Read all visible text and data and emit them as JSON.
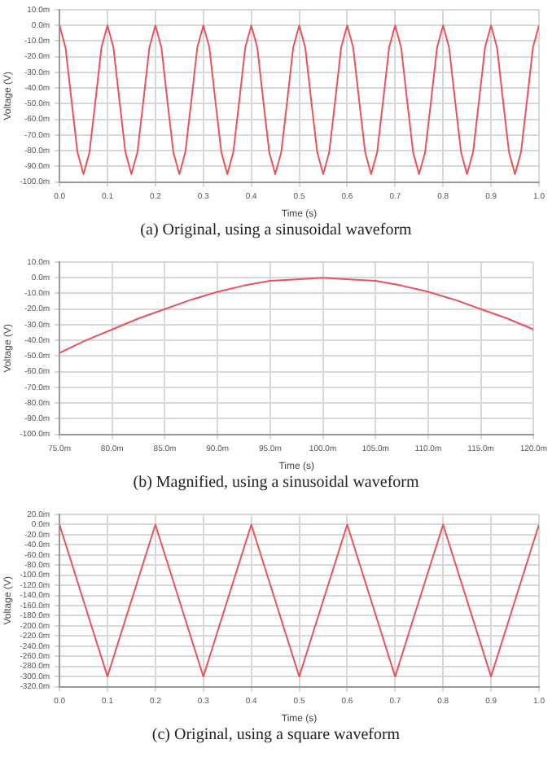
{
  "chart_data": [
    {
      "type": "line",
      "xlabel": "Time (s)",
      "ylabel": "Voltage (V)",
      "annotations": [
        "(a) Original, using a sinusoidal waveform"
      ],
      "grid": true,
      "legend": false,
      "marker": "none",
      "line_style": "solid",
      "x": [
        0,
        0.0125,
        0.025,
        0.0375,
        0.05,
        0.0625,
        0.075,
        0.0875,
        0.1,
        0.1125,
        0.125,
        0.1375,
        0.15,
        0.1625,
        0.175,
        0.1875,
        0.2,
        0.2125,
        0.225,
        0.2375,
        0.25,
        0.2625,
        0.275,
        0.2875,
        0.3,
        0.3125,
        0.325,
        0.3375,
        0.35,
        0.3625,
        0.375,
        0.3875,
        0.4,
        0.4125,
        0.425,
        0.4375,
        0.45,
        0.4625,
        0.475,
        0.4875,
        0.5,
        0.5125,
        0.525,
        0.5375,
        0.55,
        0.5625,
        0.575,
        0.5875,
        0.6,
        0.6125,
        0.625,
        0.6375,
        0.65,
        0.6625,
        0.675,
        0.6875,
        0.7,
        0.7125,
        0.725,
        0.7375,
        0.75,
        0.7625,
        0.775,
        0.7875,
        0.8,
        0.8125,
        0.825,
        0.8375,
        0.85,
        0.8625,
        0.875,
        0.8875,
        0.9,
        0.9125,
        0.925,
        0.9375,
        0.95,
        0.9625,
        0.975,
        0.9875,
        1
      ],
      "series": [
        {
          "color": "#e8545a",
          "values": [
            0,
            -14,
            -48,
            -81,
            -95,
            -81,
            -48,
            -14,
            0,
            -14,
            -48,
            -81,
            -95,
            -81,
            -48,
            -14,
            0,
            -14,
            -48,
            -81,
            -95,
            -81,
            -48,
            -14,
            0,
            -14,
            -48,
            -81,
            -95,
            -81,
            -48,
            -14,
            0,
            -14,
            -48,
            -81,
            -95,
            -81,
            -48,
            -14,
            0,
            -14,
            -48,
            -81,
            -95,
            -81,
            -48,
            -14,
            0,
            -14,
            -48,
            -81,
            -95,
            -81,
            -48,
            -14,
            0,
            -14,
            -48,
            -81,
            -95,
            -81,
            -48,
            -14,
            0,
            -14,
            -48,
            -81,
            -95,
            -81,
            -48,
            -14,
            0,
            -14,
            -48,
            -81,
            -95,
            -81,
            -48,
            -14,
            0
          ]
        }
      ],
      "xlim": [
        0,
        1
      ],
      "xticks": [
        {
          "value": 0,
          "label": "0.0"
        },
        0.1,
        0.2,
        0.3,
        0.4,
        0.5,
        0.6,
        0.7,
        0.8,
        0.9,
        {
          "value": 1,
          "label": "1.0"
        }
      ],
      "ylim": [
        -100,
        10
      ],
      "yticks": [
        {
          "value": 10,
          "label": "10.0m"
        },
        {
          "value": 0,
          "label": "0.0m"
        },
        {
          "value": -10,
          "label": "-10.0m"
        },
        {
          "value": -20,
          "label": "-20.0m"
        },
        {
          "value": -30,
          "label": "-30.0m"
        },
        {
          "value": -40,
          "label": "-40.0m"
        },
        {
          "value": -50,
          "label": "-50.0m"
        },
        {
          "value": -60,
          "label": "-60.0m"
        },
        {
          "value": -70,
          "label": "-70.0m"
        },
        {
          "value": -80,
          "label": "-80.0m"
        },
        {
          "value": -90,
          "label": "-90.0m"
        },
        {
          "value": -100,
          "label": "-100.0m"
        }
      ]
    },
    {
      "type": "line",
      "xlabel": "Time (s)",
      "ylabel": "Voltage (V)",
      "annotations": [
        "(b) Magnified, using a sinusoidal waveform"
      ],
      "grid": true,
      "legend": false,
      "marker": "none",
      "line_style": "solid",
      "x": [
        75,
        77.5,
        80,
        82.5,
        85,
        87.5,
        90,
        92.5,
        95,
        97.5,
        100,
        102.5,
        105,
        107.5,
        110,
        112.5,
        115,
        117.5,
        120
      ],
      "series": [
        {
          "color": "#e8545a",
          "values": [
            -48,
            -40,
            -33,
            -26,
            -20,
            -14,
            -9,
            -5,
            -2,
            -1,
            0,
            -1,
            -2,
            -5,
            -9,
            -14,
            -20,
            -26,
            -33
          ]
        }
      ],
      "xlim": [
        75,
        120
      ],
      "xticks": [
        {
          "value": 75,
          "label": "75.0m"
        },
        {
          "value": 80,
          "label": "80.0m"
        },
        {
          "value": 85,
          "label": "85.0m"
        },
        {
          "value": 90,
          "label": "90.0m"
        },
        {
          "value": 95,
          "label": "95.0m"
        },
        {
          "value": 100,
          "label": "100.0m"
        },
        {
          "value": 105,
          "label": "105.0m"
        },
        {
          "value": 110,
          "label": "110.0m"
        },
        {
          "value": 115,
          "label": "115.0m"
        },
        {
          "value": 120,
          "label": "120.0m"
        }
      ],
      "ylim": [
        -100,
        10
      ],
      "yticks": [
        {
          "value": 10,
          "label": "10.0m"
        },
        {
          "value": 0,
          "label": "0.0m"
        },
        {
          "value": -10,
          "label": "-10.0m"
        },
        {
          "value": -20,
          "label": "-20.0m"
        },
        {
          "value": -30,
          "label": "-30.0m"
        },
        {
          "value": -40,
          "label": "-40.0m"
        },
        {
          "value": -50,
          "label": "-50.0m"
        },
        {
          "value": -60,
          "label": "-60.0m"
        },
        {
          "value": -70,
          "label": "-70.0m"
        },
        {
          "value": -80,
          "label": "-80.0m"
        },
        {
          "value": -90,
          "label": "-90.0m"
        },
        {
          "value": -100,
          "label": "-100.0m"
        }
      ]
    },
    {
      "type": "line",
      "xlabel": "Time (s)",
      "ylabel": "Voltage (V)",
      "annotations": [
        "(c) Original, using a square waveform"
      ],
      "grid": true,
      "legend": false,
      "marker": "none",
      "line_style": "solid",
      "x": [
        0,
        0.1,
        0.2,
        0.3,
        0.4,
        0.5,
        0.6,
        0.7,
        0.8,
        0.9,
        1
      ],
      "series": [
        {
          "color": "#e8545a",
          "values": [
            0,
            -300,
            0,
            -300,
            0,
            -300,
            0,
            -300,
            0,
            -300,
            0
          ]
        }
      ],
      "xlim": [
        0,
        1
      ],
      "xticks": [
        {
          "value": 0,
          "label": "0.0"
        },
        0.1,
        0.2,
        0.3,
        0.4,
        0.5,
        0.6,
        0.7,
        0.8,
        0.9,
        {
          "value": 1,
          "label": "1.0"
        }
      ],
      "ylim": [
        -320,
        20
      ],
      "yticks": [
        {
          "value": 20,
          "label": "20.0m"
        },
        {
          "value": 0,
          "label": "0.0m"
        },
        {
          "value": -20,
          "label": "-20.0m"
        },
        {
          "value": -40,
          "label": "-40.0m"
        },
        {
          "value": -60,
          "label": "-60.0m"
        },
        {
          "value": -80,
          "label": "-80.0m"
        },
        {
          "value": -100,
          "label": "-100.0m"
        },
        {
          "value": -120,
          "label": "-120.0m"
        },
        {
          "value": -140,
          "label": "-140.0m"
        },
        {
          "value": -160,
          "label": "-160.0m"
        },
        {
          "value": -180,
          "label": "-180.0m"
        },
        {
          "value": -200,
          "label": "-200.0m"
        },
        {
          "value": -220,
          "label": "-220.0m"
        },
        {
          "value": -240,
          "label": "-240.0m"
        },
        {
          "value": -260,
          "label": "-260.0m"
        },
        {
          "value": -280,
          "label": "-280.0m"
        },
        {
          "value": -300,
          "label": "-300.0m"
        },
        {
          "value": -320,
          "label": "-320.0m"
        }
      ]
    }
  ]
}
